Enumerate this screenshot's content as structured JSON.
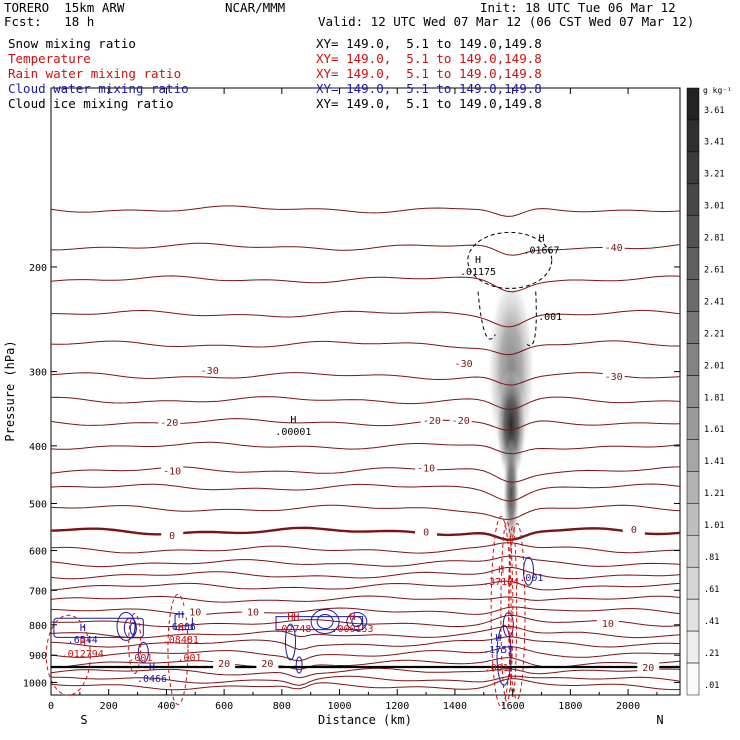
{
  "header": {
    "model": "TORERO  15km ARW",
    "forecast": "Fcst:   18 h",
    "center": "NCAR/MMM",
    "init": "Init: 18 UTC Tue 06 Mar 12",
    "valid": "Valid: 12 UTC Wed 07 Mar 12 (06 CST Wed 07 Mar 12)"
  },
  "fields": [
    {
      "name": "Snow mixing ratio",
      "xy": "XY= 149.0,  5.1 to 149.0,149.8",
      "color": "#000000"
    },
    {
      "name": "Temperature",
      "xy": "XY= 149.0,  5.1 to 149.0,149.8",
      "color": "#cc1010"
    },
    {
      "name": "Rain water mixing ratio",
      "xy": "XY= 149.0,  5.1 to 149.0,149.8",
      "color": "#cc1010"
    },
    {
      "name": "Cloud water mixing ratio",
      "xy": "XY= 149.0,  5.1 to 149.0,149.8",
      "color": "#1a1aa6"
    },
    {
      "name": "Cloud ice mixing ratio",
      "xy": "XY= 149.0,  5.1 to 149.0,149.8",
      "color": "#000000"
    }
  ],
  "chart_data": {
    "type": "cross-section",
    "xlabel": "Distance (km)",
    "ylabel": "Pressure (hPa)",
    "xlim": [
      0,
      2180
    ],
    "ylim": [
      1050,
      100
    ],
    "y_log": true,
    "x_ticks": [
      0,
      200,
      400,
      600,
      800,
      1000,
      1200,
      1400,
      1600,
      1800,
      2000
    ],
    "y_ticks": [
      200,
      300,
      400,
      500,
      600,
      700,
      800,
      900,
      1000
    ],
    "x_ends": {
      "left": "S",
      "right": "N"
    },
    "colorbar": {
      "unit": "g kg⁻¹",
      "labels": [
        "3.61",
        "3.41",
        "3.21",
        "3.01",
        "2.81",
        "2.61",
        "2.41",
        "2.21",
        "2.01",
        "1.81",
        "1.61",
        "1.41",
        "1.21",
        "1.01",
        ".81",
        ".61",
        ".41",
        ".21",
        ".01"
      ]
    },
    "temperature_isotherms": [
      {
        "label": "-40",
        "x": 1950,
        "p": 185
      },
      {
        "label": "-30",
        "x": 550,
        "p": 298
      },
      {
        "label": "-30",
        "x": 1430,
        "p": 290
      },
      {
        "label": "-30",
        "x": 1950,
        "p": 305
      },
      {
        "label": "-20",
        "x": 410,
        "p": 365
      },
      {
        "label": "-20",
        "x": 1320,
        "p": 362
      },
      {
        "label": "-20",
        "x": 1420,
        "p": 362
      },
      {
        "label": "-10",
        "x": 420,
        "p": 440
      },
      {
        "label": "-10",
        "x": 1300,
        "p": 435
      },
      {
        "label": "0",
        "x": 420,
        "p": 565
      },
      {
        "label": "0",
        "x": 1300,
        "p": 557
      },
      {
        "label": "0",
        "x": 2020,
        "p": 552
      },
      {
        "label": "10",
        "x": 500,
        "p": 760
      },
      {
        "label": "10",
        "x": 700,
        "p": 760
      },
      {
        "label": "10",
        "x": 1930,
        "p": 795
      },
      {
        "label": "20",
        "x": 600,
        "p": 928
      },
      {
        "label": "20",
        "x": 750,
        "p": 928
      },
      {
        "label": "20",
        "x": 2070,
        "p": 942
      }
    ],
    "extrema_labels": [
      {
        "mark": "H",
        "value": ".00001",
        "x": 840,
        "p": 372,
        "series": "snow"
      },
      {
        "mark": "H",
        "value": ".01175",
        "x": 1480,
        "p": 200,
        "series": "cloud ice"
      },
      {
        "mark": "H",
        "value": ".01667",
        "x": 1700,
        "p": 184,
        "series": "snow"
      },
      {
        "mark": "",
        "value": ".001",
        "x": 1730,
        "p": 238,
        "series": "cloud ice"
      },
      {
        "mark": "H",
        "value": ".37184",
        "x": 1560,
        "p": 665,
        "series": "rain"
      },
      {
        "mark": "",
        "value": ".001",
        "x": 1665,
        "p": 655,
        "series": "cloud water"
      },
      {
        "mark": "H",
        "value": ".6544",
        "x": 110,
        "p": 832,
        "series": "cloud water"
      },
      {
        "mark": "H",
        "value": ".012794",
        "x": 110,
        "p": 878,
        "series": "rain"
      },
      {
        "mark": "",
        "value": ".001",
        "x": 310,
        "p": 893,
        "series": "rain"
      },
      {
        "mark": "H",
        "value": ".6606",
        "x": 450,
        "p": 792,
        "series": "cloud water"
      },
      {
        "mark": "H",
        "value": ".08481",
        "x": 450,
        "p": 833,
        "series": "rain"
      },
      {
        "mark": "",
        "value": ".001",
        "x": 480,
        "p": 893,
        "series": "rain"
      },
      {
        "mark": "H",
        "value": ".0466",
        "x": 350,
        "p": 968,
        "series": "cloud water"
      },
      {
        "mark": "HH",
        "value": ".02748",
        "x": 840,
        "p": 797,
        "series": "rain"
      },
      {
        "mark": "H",
        "value": ".000153",
        "x": 1045,
        "p": 797,
        "series": "rain"
      },
      {
        "mark": "H",
        "value": ".1757",
        "x": 1550,
        "p": 865,
        "series": "cloud water"
      },
      {
        "mark": "",
        "value": ".001",
        "x": 1545,
        "p": 928,
        "series": "rain"
      }
    ],
    "snow_maximum": {
      "x": 1595,
      "p": 370,
      "value": 3.6
    }
  }
}
